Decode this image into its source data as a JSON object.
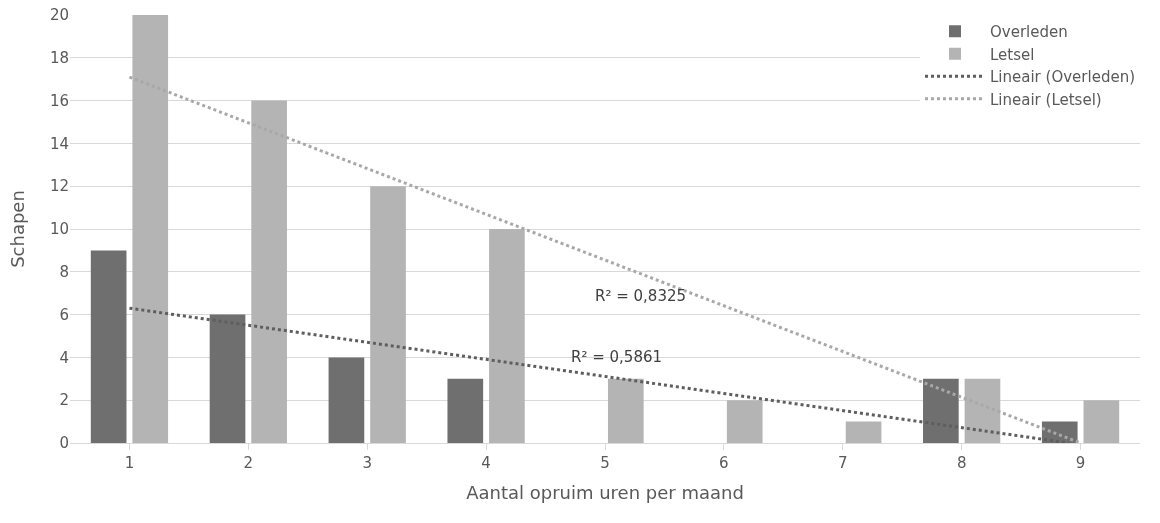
{
  "chart_data": {
    "type": "bar",
    "xlabel": "Aantal opruim uren per maand",
    "ylabel": "Schapen",
    "x": [
      1,
      2,
      3,
      4,
      5,
      6,
      7,
      8,
      9
    ],
    "xlim": [
      0.5,
      9.5
    ],
    "xticks": [
      1,
      2,
      3,
      4,
      5,
      6,
      7,
      8,
      9
    ],
    "ylim": [
      0,
      20
    ],
    "yticks": [
      0,
      2,
      4,
      6,
      8,
      10,
      12,
      14,
      16,
      18,
      20
    ],
    "series": [
      {
        "name": "Overleden",
        "color": "#6f6f6f",
        "values": [
          9,
          6,
          4,
          3,
          0,
          0,
          0,
          3,
          1
        ]
      },
      {
        "name": "Letsel",
        "color": "#b4b4b4",
        "values": [
          20,
          16,
          12,
          10,
          3,
          2,
          1,
          3,
          2
        ]
      },
      {
        "name": "Lineair (Overleden)",
        "type": "line",
        "color": "#5e5e5e",
        "line_style": "dotted",
        "x": [
          1,
          8.9
        ],
        "values": [
          6.3,
          0
        ]
      },
      {
        "name": "Lineair (Letsel)",
        "type": "line",
        "color": "#a8a8a8",
        "line_style": "dotted",
        "x": [
          1,
          9
        ],
        "values": [
          17.1,
          0
        ]
      }
    ],
    "annotations": [
      {
        "text": "R² = 0,8325",
        "x": 5.3,
        "y": 7.9
      },
      {
        "text": "R² = 0,5861",
        "x": 5.1,
        "y": 3.0
      }
    ],
    "grid": "y",
    "legend": "top right"
  }
}
